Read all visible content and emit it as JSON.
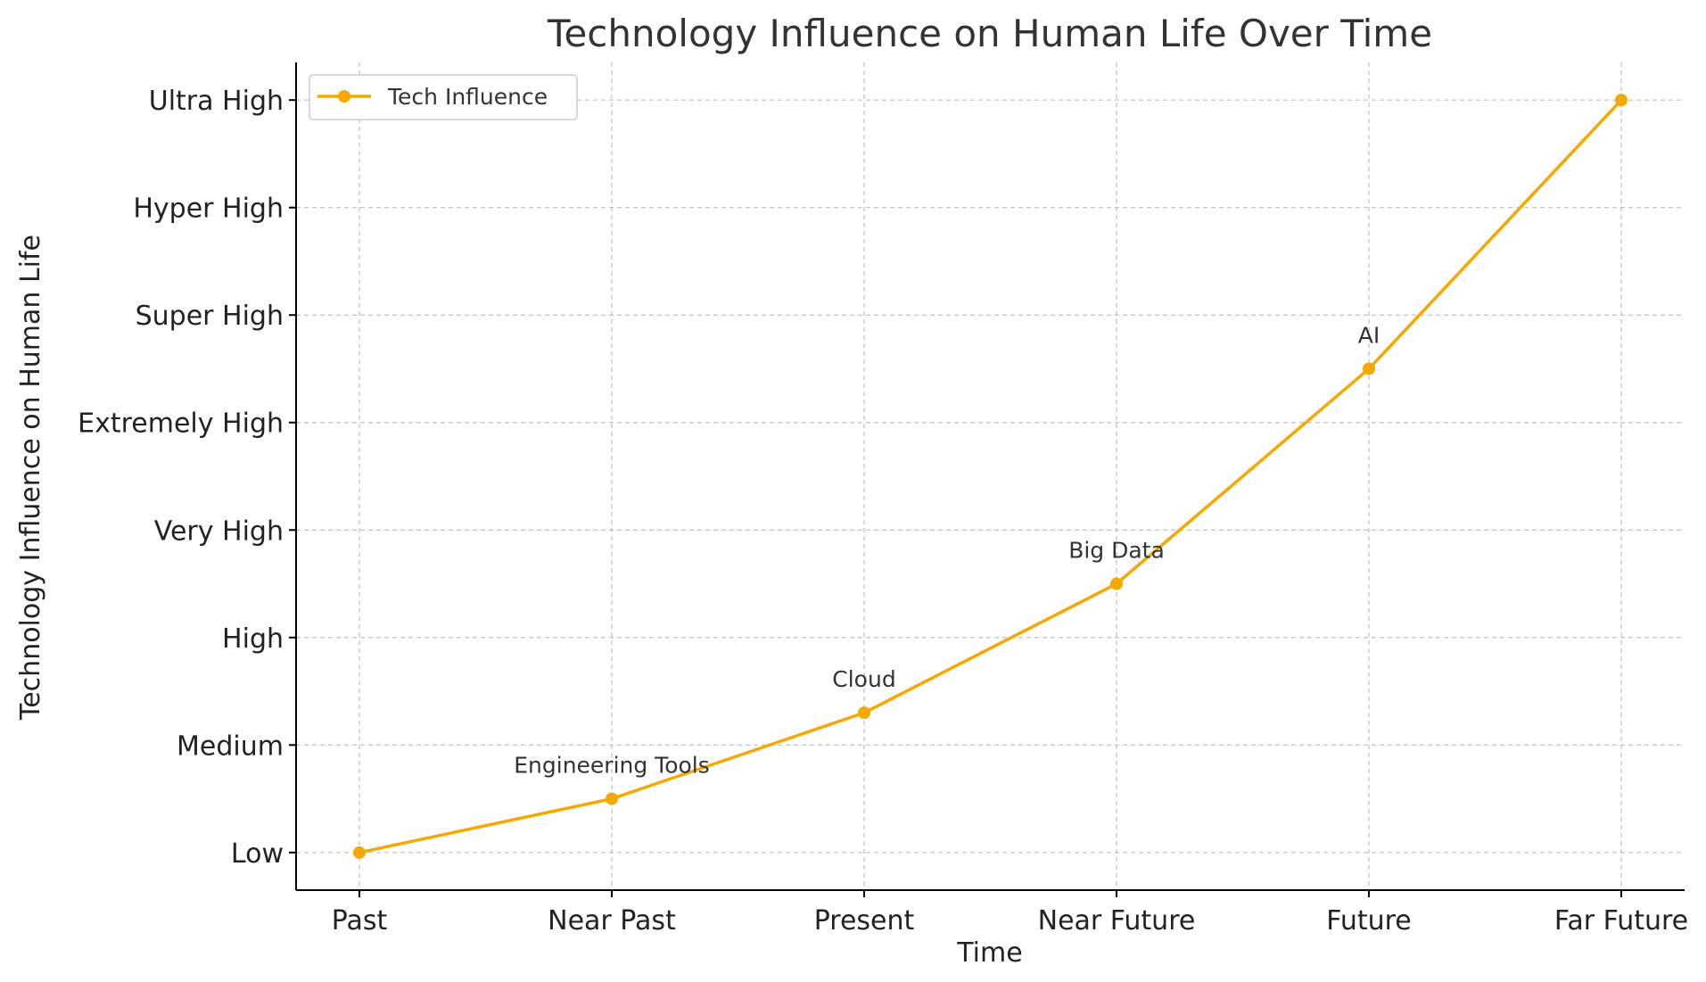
{
  "chart_data": {
    "type": "line",
    "title": "Technology Influence on Human Life Over Time",
    "xlabel": "Time",
    "ylabel": "Technology Influence on Human Life",
    "categories": [
      "Past",
      "Near Past",
      "Present",
      "Near Future",
      "Future",
      "Far Future"
    ],
    "y_ticks": [
      "Low",
      "Medium",
      "High",
      "Very High",
      "Extremely High",
      "Super High",
      "Hyper High",
      "Ultra High"
    ],
    "ylim": [
      -0.35,
      7.35
    ],
    "grid": true,
    "legend_position": "top-left",
    "series": [
      {
        "name": "Tech Influence",
        "color": "#f5a800",
        "values": [
          0,
          0.5,
          1.3,
          2.5,
          4.5,
          7
        ]
      }
    ],
    "annotations": [
      {
        "text": "Engineering Tools",
        "x": "Near Past",
        "y": 0.5
      },
      {
        "text": "Cloud",
        "x": "Present",
        "y": 1.3
      },
      {
        "text": "Big Data",
        "x": "Near Future",
        "y": 2.5
      },
      {
        "text": "AI",
        "x": "Future",
        "y": 4.5
      }
    ]
  }
}
